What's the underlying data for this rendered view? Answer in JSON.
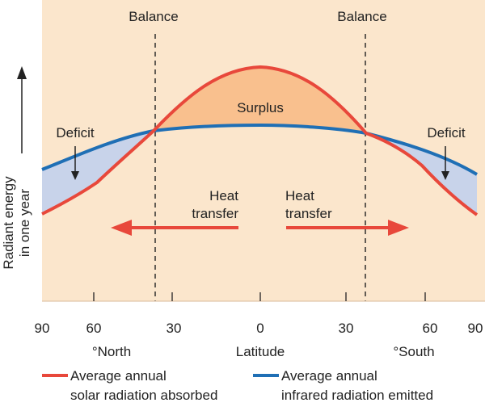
{
  "annotations": {
    "balance_left": "Balance",
    "balance_right": "Balance",
    "surplus": "Surplus",
    "deficit_left": "Deficit",
    "deficit_right": "Deficit",
    "heat_left_1": "Heat",
    "heat_left_2": "transfer",
    "heat_right_1": "Heat",
    "heat_right_2": "transfer"
  },
  "axis": {
    "y_label_1": "Radiant energy",
    "y_label_2": "in one year",
    "x_title": "Latitude",
    "x_north": "°North",
    "x_south": "°South",
    "x_ticks": [
      "90",
      "60",
      "30",
      "0",
      "30",
      "60",
      "90"
    ]
  },
  "legend": {
    "solar_1": "Average annual",
    "solar_2": "solar radiation absorbed",
    "infrared_1": "Average annual",
    "infrared_2": "infrared radiation emitted"
  },
  "colors": {
    "background_plot": "#fbe6cc",
    "solar": "#e8483b",
    "infrared": "#1f6fb5",
    "surplus_fill": "#f9c08e",
    "deficit_fill": "#c8d3ea",
    "arrow": "#e8483b"
  }
}
